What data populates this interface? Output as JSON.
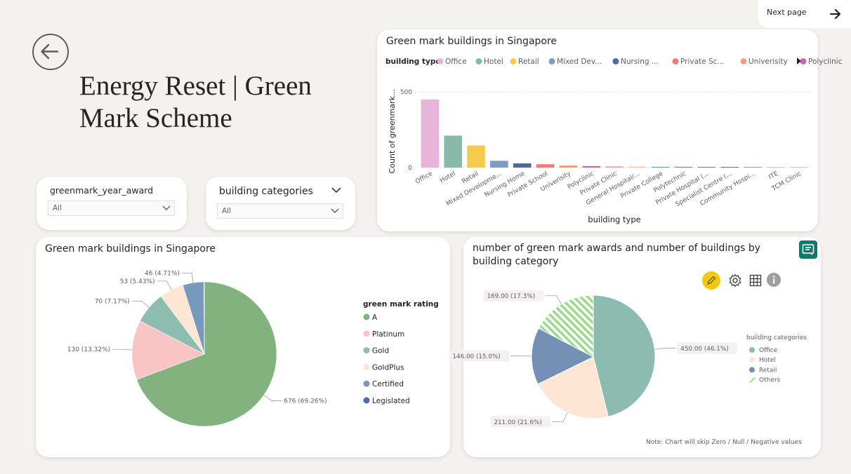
{
  "page": {
    "title": "Energy Reset | Green Mark Scheme",
    "next_page_label": "Next page"
  },
  "slicers": [
    {
      "label": "greenmark_year_award",
      "value": "All"
    },
    {
      "label": "building categories",
      "value": "All"
    }
  ],
  "icons": [
    "back-arrow-icon",
    "right-arrow-icon",
    "chevron-down-icon",
    "pencil-icon",
    "gear-icon",
    "grid-icon",
    "info-icon",
    "comment-icon",
    "legend-scroll-right-icon"
  ],
  "colors": {
    "background": "#f4f2ee",
    "highlight_yellow": "#f2c811",
    "accent_teal": "#0e7a6a"
  },
  "chart_data": [
    {
      "type": "bar",
      "title": "Green mark buildings in Singapore",
      "xlabel": "building type",
      "ylabel": "Count of greenmark...",
      "legend_title": "building type",
      "legend_position": "top",
      "legend_entries": [
        "Office",
        "Hotel",
        "Retail",
        "Mixed Dev...",
        "Nursing ...",
        "Private Sc...",
        "Univerisity",
        "Polyclinic"
      ],
      "categories": [
        "Office",
        "Hotel",
        "Retail",
        "Mixed Developme...",
        "Nursing Home",
        "Private School",
        "Univerisity",
        "Polyclinic",
        "Private Clinic",
        "General Hospital/...",
        "Private College",
        "Polytechnic",
        "Private Hospital (...",
        "Specialist Centre (...",
        "Community Hospi...",
        "ITE",
        "TCM Clinic"
      ],
      "values": [
        450,
        211,
        146,
        45,
        28,
        22,
        14,
        10,
        8,
        6,
        5,
        5,
        4,
        3,
        2,
        1,
        1
      ],
      "colors": [
        "#e8b4dc",
        "#87bba8",
        "#f5cb4f",
        "#7b9cc3",
        "#4e69a8",
        "#f07b7b",
        "#f4a07e",
        "#c96aa8",
        "#e9a8a8",
        "#f5c8a8",
        "#5aa69b",
        "#6b86b5",
        "#8a7a8a",
        "#7a6a6a",
        "#8aa89a",
        "#cccccc",
        "#cccccc"
      ],
      "yticks": [
        0,
        500
      ],
      "ylim": [
        0,
        550
      ],
      "grid": true
    },
    {
      "type": "pie",
      "title": "Green mark buildings in Singapore",
      "legend_title": "green mark rating",
      "legend_position": "right",
      "categories": [
        "A",
        "Platinum",
        "Gold",
        "GoldPlus",
        "Certified",
        "Legislated"
      ],
      "values": [
        676,
        130,
        70,
        53,
        46,
        1
      ],
      "labels": [
        "676 (69.26%)",
        "130 (13.32%)",
        "70 (7.17%)",
        "53 (5.43%)",
        "46 (4.71%)",
        ""
      ],
      "colors": [
        "#82b27e",
        "#f8c4c4",
        "#8dbdae",
        "#fde7d4",
        "#7898be",
        "#4e69a8"
      ]
    },
    {
      "type": "pie",
      "title": "number of green mark awards and number of buildings by building category",
      "legend_title": "building categories",
      "legend_position": "right",
      "categories": [
        "Office",
        "Hotel",
        "Retail",
        "Others"
      ],
      "values": [
        450,
        211,
        146,
        169
      ],
      "labels": [
        "450.00 (46.1%)",
        "211.00 (21.6%)",
        "146.00 (15.0%)",
        "169.00 (17.3%)"
      ],
      "colors": [
        "#8cbcaf",
        "#fde7d4",
        "#7590b5",
        "#9adb8c"
      ],
      "note": "Note: Chart will skip Zero / Null / Negative values"
    }
  ]
}
